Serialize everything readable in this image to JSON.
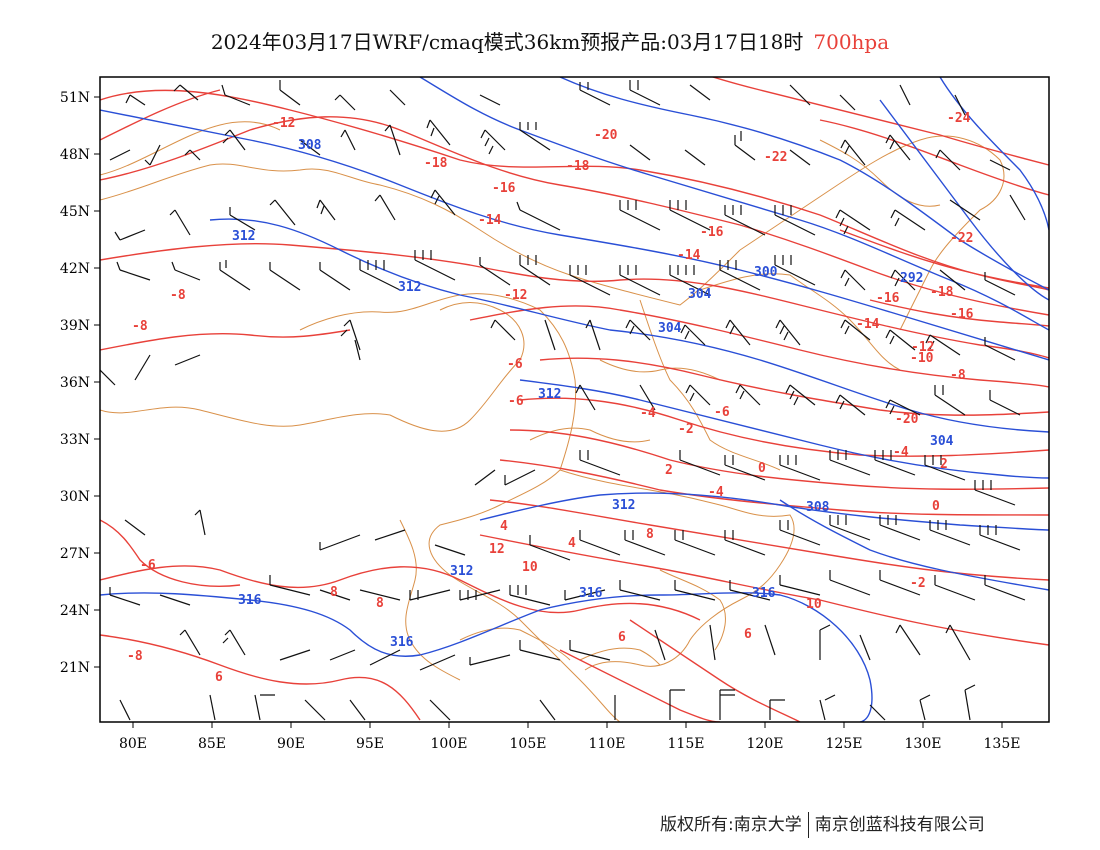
{
  "title": {
    "main": "2024年03月17日WRF/cmaq模式36km预报产品:03月17日18时",
    "level": "700hpa"
  },
  "axes": {
    "lat_labels": [
      "51N",
      "48N",
      "45N",
      "42N",
      "39N",
      "36N",
      "33N",
      "30N",
      "27N",
      "24N",
      "21N"
    ],
    "lon_labels": [
      "80E",
      "85E",
      "90E",
      "95E",
      "100E",
      "105E",
      "110E",
      "115E",
      "120E",
      "125E",
      "130E",
      "135E"
    ]
  },
  "colors": {
    "temperature": "#e8413a",
    "height": "#2a4fd6",
    "border": "#d9914a",
    "barb": "#111111",
    "frame": "#000000"
  },
  "contour_labels": {
    "temperature": [
      "-12",
      "-18",
      "-16",
      "-14",
      "-20",
      "-18",
      "-16",
      "-22",
      "-24",
      "-22",
      "-16",
      "-14",
      "-12",
      "-8",
      "-8",
      "-6",
      "-6",
      "-4",
      "-2",
      "2",
      "0",
      "4",
      "-4",
      "-6",
      "-10",
      "-12",
      "-8",
      "-14",
      "-16",
      "-18",
      "-20",
      "-4",
      "2",
      "0",
      "-2",
      "4",
      "8",
      "6",
      "10",
      "12",
      "6",
      "8",
      "10",
      "8",
      "-6",
      "6",
      "-8"
    ],
    "height": [
      "308",
      "312",
      "312",
      "312",
      "304",
      "300",
      "304",
      "292",
      "308",
      "312",
      "312",
      "316",
      "316",
      "316",
      "316",
      "304"
    ]
  },
  "footer": {
    "left": "版权所有:南京大学",
    "right": "南京创蓝科技有限公司"
  }
}
